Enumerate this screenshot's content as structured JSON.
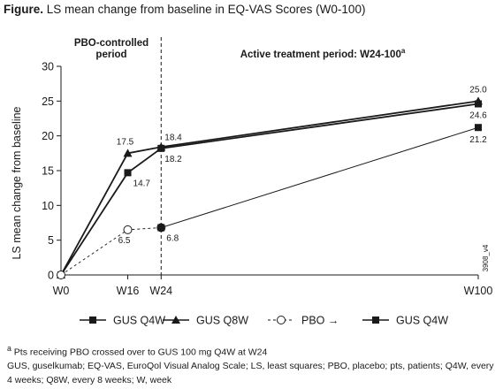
{
  "figure": {
    "title_label": "Figure.",
    "title_text": "LS mean change from baseline in EQ-VAS Scores (W0-100)",
    "footnote_a_marker": "a",
    "footnote_a": "Pts receiving PBO crossed over to GUS 100 mg Q4W at W24",
    "abbreviations": "GUS, guselkumab; EQ-VAS, EuroQol Visual Analog Scale; LS, least squares; PBO, placebo; pts, patients; Q4W, every 4 weeks; Q8W, every 8 weeks; W, week",
    "figure_code": "3908_v4"
  },
  "chart_data": {
    "type": "line",
    "ylabel": "LS mean change from baseline",
    "xlabel": "",
    "ylim": [
      0,
      30
    ],
    "yticks": [
      0,
      5,
      10,
      15,
      20,
      25,
      30
    ],
    "xticks": [
      {
        "week": 0,
        "label": "W0"
      },
      {
        "week": 16,
        "label": "W16"
      },
      {
        "week": 24,
        "label": "W24"
      },
      {
        "week": 100,
        "label": "W100"
      }
    ],
    "period_divider_week": 24,
    "periods": [
      {
        "lines": [
          "PBO-controlled",
          "period"
        ],
        "bold": true
      },
      {
        "lines": [
          "Active treatment period: W24-100"
        ],
        "superscript": "a",
        "bold": true
      }
    ],
    "series": [
      {
        "name": "GUS Q4W",
        "marker": "square",
        "filled": true,
        "dashed": false,
        "x": [
          0,
          16,
          24,
          100
        ],
        "y": [
          0,
          14.7,
          18.2,
          24.6
        ],
        "labels": [
          null,
          "14.7",
          "18.2",
          "24.6"
        ]
      },
      {
        "name": "GUS Q8W",
        "marker": "triangle",
        "filled": true,
        "dashed": false,
        "x": [
          0,
          16,
          24,
          100
        ],
        "y": [
          0,
          17.5,
          18.4,
          25.0
        ],
        "labels": [
          null,
          "17.5",
          "18.4",
          "25.0"
        ]
      },
      {
        "name": "PBO",
        "marker": "circle",
        "filled": false,
        "dashed": true,
        "x": [
          0,
          16,
          24
        ],
        "y": [
          0,
          6.5,
          6.8
        ],
        "labels": [
          null,
          "6.5",
          "6.8"
        ]
      },
      {
        "name": "GUS Q4W",
        "marker": "square",
        "filled": true,
        "dashed": false,
        "thin": true,
        "x": [
          24,
          100
        ],
        "y": [
          6.8,
          21.2
        ],
        "labels": [
          null,
          "21.2"
        ]
      }
    ],
    "legend": [
      {
        "label": "GUS Q4W",
        "marker": "square",
        "dashed": false
      },
      {
        "label": "GUS Q8W",
        "marker": "triangle",
        "dashed": false
      },
      {
        "label": "PBO →",
        "marker": "circle",
        "dashed": true
      },
      {
        "label": "GUS Q4W",
        "marker": "square",
        "dashed": false
      }
    ],
    "colors": {
      "line": "#1a1a1a",
      "grid": "none"
    }
  }
}
